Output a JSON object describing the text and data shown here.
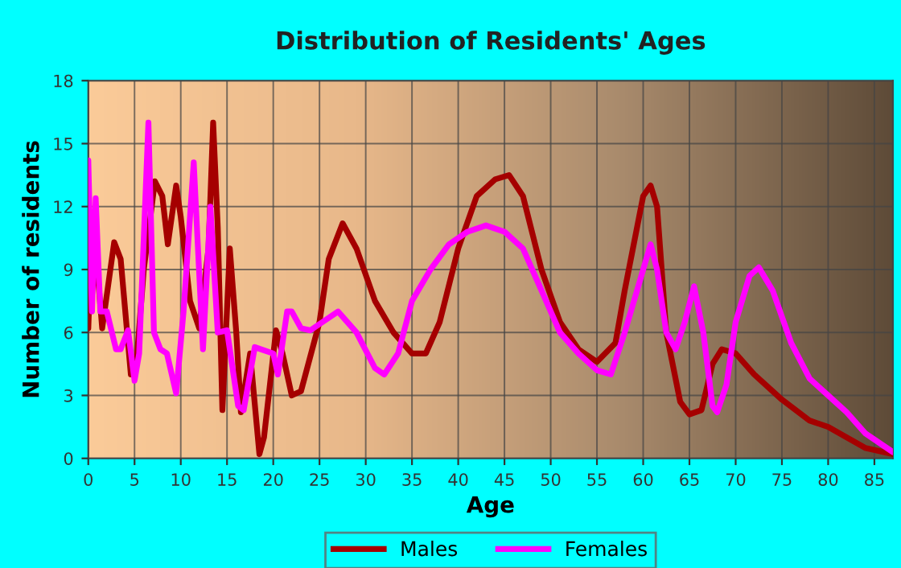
{
  "chart_data": {
    "type": "line",
    "title": "Distribution of Residents' Ages",
    "xlabel": "Age",
    "ylabel": "Number of residents",
    "xlim": [
      0,
      87
    ],
    "xticks": [
      0,
      5,
      10,
      15,
      20,
      25,
      30,
      35,
      40,
      45,
      50,
      55,
      60,
      65,
      70,
      75,
      80,
      85
    ],
    "ylim": [
      0,
      18
    ],
    "yticks": [
      0,
      3,
      6,
      9,
      12,
      15,
      18
    ],
    "grid": true,
    "legend": "bottom",
    "marker": "none",
    "line_style": "solid",
    "series": [
      {
        "name": "Males",
        "color": "#a50000",
        "x": [
          0,
          0.3,
          0.8,
          1.5,
          2.8,
          3.5,
          4.6,
          5.2,
          6,
          7.2,
          8,
          8.6,
          9.5,
          10,
          11,
          12,
          13,
          13.5,
          14,
          14.5,
          15.3,
          16,
          16.5,
          17.5,
          18.5,
          19,
          20.3,
          21,
          22,
          23,
          25,
          26,
          27.5,
          29,
          31,
          33,
          35,
          36.5,
          38,
          40,
          42,
          44,
          45.5,
          47,
          49,
          51,
          53,
          55,
          57,
          58,
          60,
          60.8,
          61.5,
          62.5,
          64,
          65,
          66.3,
          67.5,
          68.5,
          70,
          72,
          75,
          78,
          80,
          82,
          84,
          87
        ],
        "values": [
          6.2,
          10,
          10,
          6.2,
          10.3,
          9.5,
          4,
          4.5,
          9,
          13.2,
          12.5,
          10.2,
          13,
          11.5,
          7.5,
          6.2,
          10,
          16,
          11,
          2.3,
          10,
          6,
          2.2,
          5,
          0.2,
          1,
          6.1,
          5,
          3,
          3.2,
          6.5,
          9.5,
          11.2,
          10,
          7.5,
          6,
          5,
          5,
          6.5,
          10,
          12.5,
          13.3,
          13.5,
          12.5,
          9,
          6.5,
          5.2,
          4.6,
          5.5,
          8,
          12.5,
          13,
          12,
          6,
          2.7,
          2.1,
          2.3,
          4.5,
          5.2,
          5,
          4,
          2.8,
          1.8,
          1.5,
          1,
          0.5,
          0.2
        ]
      },
      {
        "name": "Females",
        "color": "#ff00ff",
        "x": [
          0,
          0.4,
          0.8,
          1.3,
          2,
          3,
          3.5,
          4.3,
          5,
          5.5,
          6.5,
          7.1,
          7.8,
          8.5,
          9.5,
          10.3,
          11.4,
          12.4,
          13.2,
          14,
          15,
          16.2,
          16.8,
          18,
          20,
          20.5,
          21.5,
          22,
          23,
          24,
          27,
          29,
          31,
          32,
          33.5,
          35,
          37,
          39,
          41,
          43,
          45,
          47,
          49,
          51,
          53,
          55,
          56.5,
          58,
          60,
          60.8,
          61.5,
          62.5,
          63.5,
          64.5,
          65.5,
          66.5,
          67.5,
          68,
          69,
          70,
          71.5,
          72.5,
          74,
          76,
          78,
          80,
          82,
          84,
          87
        ],
        "values": [
          14.2,
          7,
          12.4,
          7,
          7,
          5.2,
          5.2,
          6.1,
          3.7,
          5,
          16,
          6,
          5.2,
          5,
          3.1,
          7,
          14.1,
          5.2,
          12,
          6,
          6.1,
          2.5,
          2.3,
          5.3,
          5,
          4,
          7,
          7,
          6.2,
          6.1,
          7,
          6,
          4.3,
          4,
          5,
          7.5,
          9,
          10.2,
          10.8,
          11.1,
          10.8,
          10,
          8,
          6,
          5,
          4.2,
          4,
          6,
          9,
          10.2,
          9,
          6,
          5.2,
          6.5,
          8.2,
          6,
          2.5,
          2.2,
          3.5,
          6.5,
          8.7,
          9.1,
          8,
          5.5,
          3.8,
          3,
          2.2,
          1.2,
          0.3
        ]
      }
    ]
  }
}
